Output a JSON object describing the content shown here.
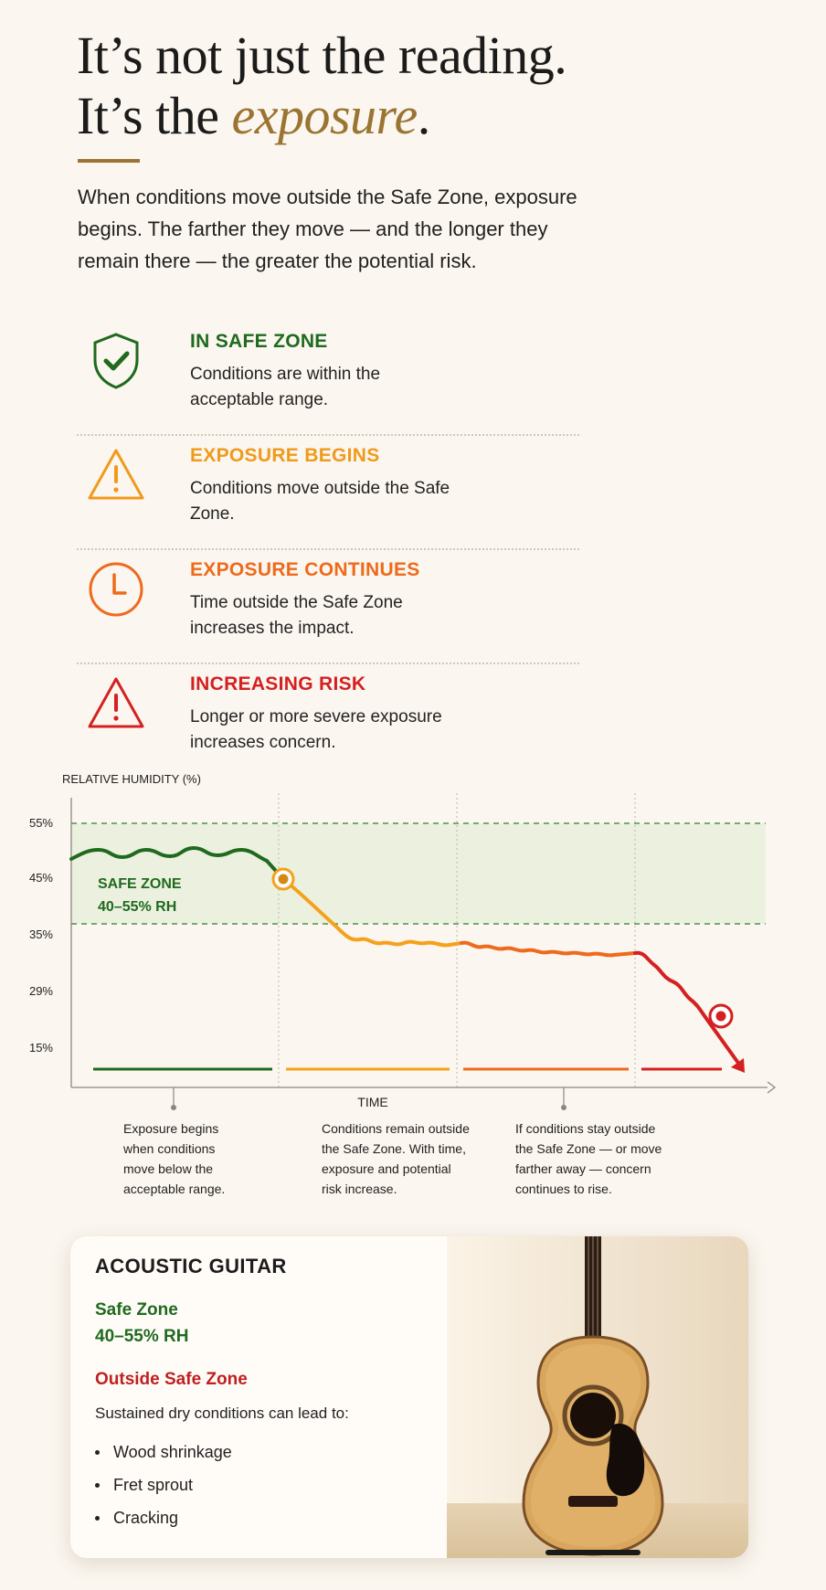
{
  "header": {
    "title_line1": "It’s not just the reading.",
    "title_line2_prefix": "It’s the ",
    "title_line2_emphasis": "exposure",
    "title_line2_suffix": ".",
    "intro": "When conditions move outside the Safe Zone, exposure begins. The farther they move — and the longer they remain there — the greater the potential risk."
  },
  "legend": [
    {
      "title": "IN SAFE ZONE",
      "desc": "Conditions are within the acceptable range.",
      "color": "#1f6a1e",
      "icon": "shield-check-icon"
    },
    {
      "title": "EXPOSURE BEGINS",
      "desc": "Conditions move outside the Safe Zone.",
      "color": "#f09a1c",
      "icon": "warning-triangle-icon"
    },
    {
      "title": "EXPOSURE CONTINUES",
      "desc": "Time outside the Safe Zone increases the impact.",
      "color": "#ee6a1c",
      "icon": "clock-icon"
    },
    {
      "title": "INCREASING RISK",
      "desc": "Longer or more severe exposure increases concern.",
      "color": "#d42020",
      "icon": "danger-triangle-icon"
    }
  ],
  "chart": {
    "ylabel": "RELATIVE HUMIDITY (%)",
    "xlabel": "TIME",
    "yticks": [
      "55%",
      "45%",
      "35%",
      "29%",
      "15%"
    ],
    "safe_zone_title": "SAFE ZONE",
    "safe_zone_range": "40–55% RH",
    "annotations": [
      "Exposure begins when conditions move below the acceptable range.",
      "Conditions remain outside the Safe Zone. With time, exposure and potential risk increase.",
      "If conditions stay outside the Safe Zone — or move farther away — concern continues to rise."
    ],
    "colors": {
      "safe": "#1f6a1e",
      "begin": "#f5a11c",
      "continue": "#ee6a1c",
      "risk": "#d42020",
      "zone_fill": "#e6efd8"
    }
  },
  "chart_data": {
    "type": "line",
    "title": "",
    "xlabel": "TIME",
    "ylabel": "RELATIVE HUMIDITY (%)",
    "y_tick_labels": [
      "55%",
      "45%",
      "35%",
      "29%",
      "15%"
    ],
    "safe_zone": [
      40,
      55
    ],
    "series": [
      {
        "x": [
          0,
          0.1,
          0.2,
          0.3,
          0.4,
          0.5,
          0.6,
          0.7,
          0.8,
          0.9,
          1.0
        ],
        "y": [
          48,
          50,
          50,
          49,
          45,
          37,
          34,
          33,
          33,
          32,
          23
        ]
      }
    ],
    "phases": [
      "IN SAFE ZONE",
      "EXPOSURE BEGINS",
      "EXPOSURE CONTINUES",
      "INCREASING RISK"
    ],
    "grid": false
  },
  "card": {
    "title": "ACOUSTIC GUITAR",
    "safe_label": "Safe Zone",
    "safe_range": "40–55% RH",
    "outside_label": "Outside Safe Zone",
    "lead": "Sustained dry conditions can lead to:",
    "effects": [
      "Wood shrinkage",
      "Fret sprout",
      "Cracking"
    ]
  }
}
